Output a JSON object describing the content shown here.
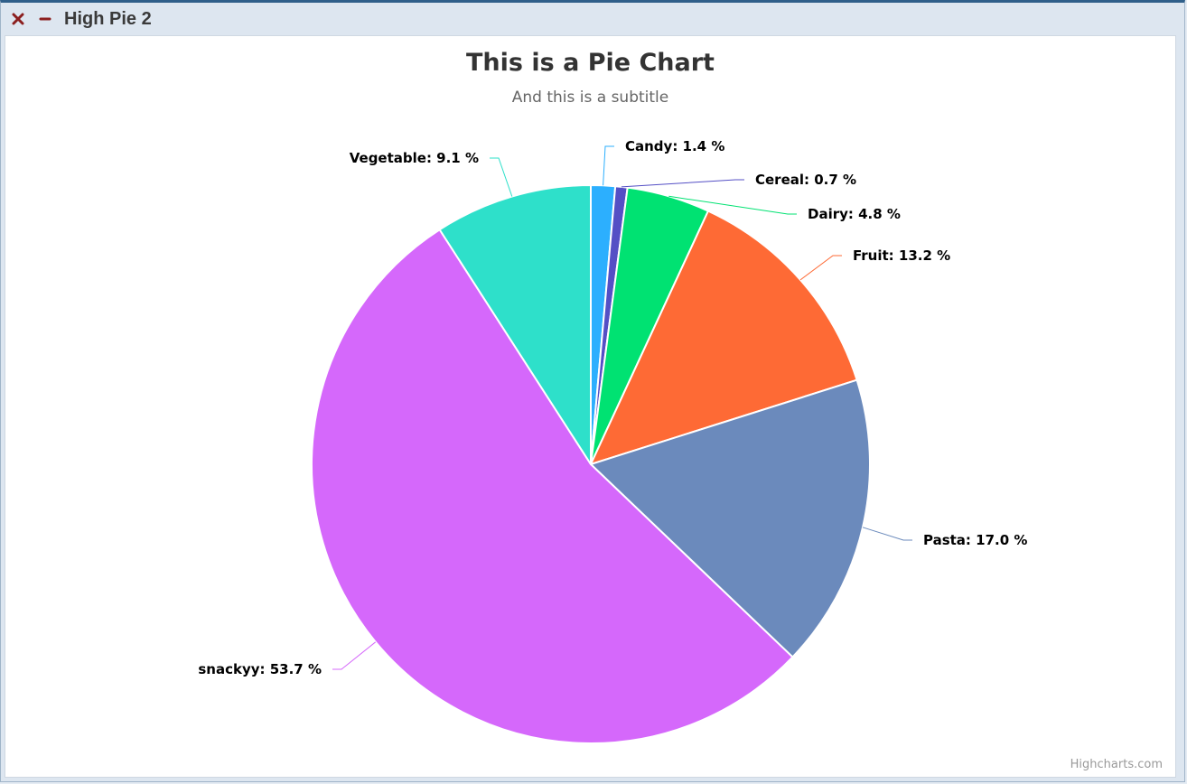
{
  "window": {
    "title": "High Pie 2",
    "close_icon": "close-icon",
    "minimize_icon": "minimize-icon",
    "close_color": "#8b1e1e",
    "minimize_color": "#8b1e1e"
  },
  "chart_data": {
    "type": "pie",
    "title": "This is a Pie Chart",
    "subtitle": "And this is a subtitle",
    "credits": "Highcharts.com",
    "label_format": "{name}: {pct} %",
    "slices": [
      {
        "name": "Candy",
        "value": 1.4,
        "color": "#2caffe"
      },
      {
        "name": "Cereal",
        "value": 0.7,
        "color": "#544fc5"
      },
      {
        "name": "Dairy",
        "value": 4.8,
        "color": "#00e272"
      },
      {
        "name": "Fruit",
        "value": 13.2,
        "color": "#fe6a35"
      },
      {
        "name": "Pasta",
        "value": 17.0,
        "color": "#6b8abc"
      },
      {
        "name": "snackyy",
        "value": 53.7,
        "color": "#d568fb"
      },
      {
        "name": "Vegetable",
        "value": 9.1,
        "color": "#2ee0ca"
      }
    ]
  }
}
